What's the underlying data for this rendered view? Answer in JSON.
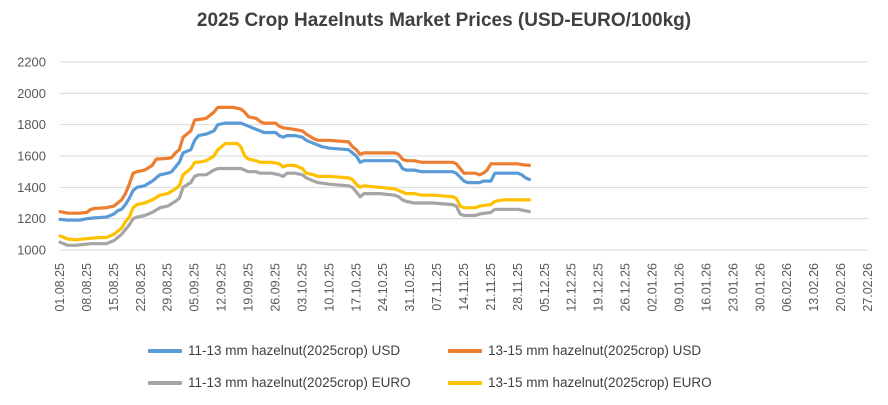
{
  "chart_data": {
    "type": "line",
    "title": "2025 Crop Hazelnuts Market Prices (USD-EURO/100kg)",
    "xlabel": "",
    "ylabel": "",
    "ylim": [
      1000,
      2200
    ],
    "yticks": [
      1000,
      1200,
      1400,
      1600,
      1800,
      2000,
      2200
    ],
    "grid": true,
    "legend_position": "bottom",
    "x_tick_labels": [
      "01.08.25",
      "08.08.25",
      "15.08.25",
      "22.08.25",
      "29.08.25",
      "05.09.25",
      "12.09.25",
      "19.09.25",
      "26.09.25",
      "03.10.25",
      "10.10.25",
      "17.10.25",
      "24.10.25",
      "31.10.25",
      "07.11.25",
      "14.11.25",
      "21.11.25",
      "28.11.25",
      "05.12.25",
      "12.12.25",
      "19.12.25",
      "26.12.25",
      "02.01.26",
      "09.01.26",
      "16.01.26",
      "23.01.26",
      "30.01.26",
      "06.02.26",
      "13.02.26",
      "20.02.26",
      "27.02.26"
    ],
    "series": [
      {
        "name": "11-13 mm hazelnut(2025crop) USD",
        "color": "#5B9BD5",
        "points": [
          [
            0,
            1195
          ],
          [
            2,
            1190
          ],
          [
            5,
            1190
          ],
          [
            7,
            1200
          ],
          [
            9,
            1205
          ],
          [
            12,
            1210
          ],
          [
            14,
            1230
          ],
          [
            15,
            1250
          ],
          [
            16,
            1260
          ],
          [
            17,
            1290
          ],
          [
            18,
            1330
          ],
          [
            19,
            1380
          ],
          [
            20,
            1400
          ],
          [
            22,
            1410
          ],
          [
            24,
            1440
          ],
          [
            26,
            1480
          ],
          [
            28,
            1490
          ],
          [
            29,
            1500
          ],
          [
            30,
            1530
          ],
          [
            31,
            1560
          ],
          [
            32,
            1620
          ],
          [
            34,
            1640
          ],
          [
            35,
            1700
          ],
          [
            36,
            1730
          ],
          [
            38,
            1740
          ],
          [
            40,
            1760
          ],
          [
            41,
            1800
          ],
          [
            43,
            1810
          ],
          [
            47,
            1810
          ],
          [
            49,
            1790
          ],
          [
            51,
            1770
          ],
          [
            52,
            1760
          ],
          [
            53,
            1750
          ],
          [
            56,
            1750
          ],
          [
            57,
            1730
          ],
          [
            58,
            1720
          ],
          [
            59,
            1730
          ],
          [
            61,
            1730
          ],
          [
            63,
            1720
          ],
          [
            64,
            1700
          ],
          [
            66,
            1680
          ],
          [
            67,
            1670
          ],
          [
            68,
            1660
          ],
          [
            70,
            1650
          ],
          [
            75,
            1640
          ],
          [
            76,
            1620
          ],
          [
            77,
            1600
          ],
          [
            78,
            1560
          ],
          [
            79,
            1570
          ],
          [
            83,
            1570
          ],
          [
            87,
            1570
          ],
          [
            88,
            1560
          ],
          [
            89,
            1520
          ],
          [
            90,
            1510
          ],
          [
            92,
            1510
          ],
          [
            94,
            1500
          ],
          [
            97,
            1500
          ],
          [
            102,
            1500
          ],
          [
            103,
            1490
          ],
          [
            105,
            1440
          ],
          [
            106,
            1430
          ],
          [
            109,
            1430
          ],
          [
            110,
            1440
          ],
          [
            112,
            1440
          ],
          [
            113,
            1490
          ],
          [
            115,
            1490
          ],
          [
            119,
            1490
          ],
          [
            120,
            1480
          ],
          [
            121,
            1460
          ],
          [
            122,
            1450
          ]
        ]
      },
      {
        "name": "13-15 mm hazelnut(2025crop) USD",
        "color": "#ED7D31",
        "points": [
          [
            0,
            1245
          ],
          [
            2,
            1235
          ],
          [
            5,
            1235
          ],
          [
            7,
            1240
          ],
          [
            8,
            1260
          ],
          [
            9,
            1265
          ],
          [
            12,
            1270
          ],
          [
            14,
            1280
          ],
          [
            15,
            1300
          ],
          [
            16,
            1320
          ],
          [
            17,
            1360
          ],
          [
            18,
            1420
          ],
          [
            19,
            1490
          ],
          [
            20,
            1500
          ],
          [
            22,
            1510
          ],
          [
            24,
            1540
          ],
          [
            25,
            1580
          ],
          [
            28,
            1585
          ],
          [
            29,
            1590
          ],
          [
            30,
            1620
          ],
          [
            31,
            1640
          ],
          [
            32,
            1720
          ],
          [
            34,
            1760
          ],
          [
            35,
            1830
          ],
          [
            38,
            1840
          ],
          [
            40,
            1880
          ],
          [
            41,
            1910
          ],
          [
            45,
            1910
          ],
          [
            47,
            1900
          ],
          [
            48,
            1880
          ],
          [
            49,
            1850
          ],
          [
            51,
            1840
          ],
          [
            52,
            1820
          ],
          [
            53,
            1810
          ],
          [
            56,
            1810
          ],
          [
            57,
            1790
          ],
          [
            58,
            1780
          ],
          [
            61,
            1770
          ],
          [
            63,
            1760
          ],
          [
            64,
            1740
          ],
          [
            66,
            1710
          ],
          [
            67,
            1700
          ],
          [
            70,
            1700
          ],
          [
            75,
            1690
          ],
          [
            76,
            1660
          ],
          [
            77,
            1640
          ],
          [
            78,
            1610
          ],
          [
            79,
            1620
          ],
          [
            83,
            1620
          ],
          [
            87,
            1620
          ],
          [
            88,
            1610
          ],
          [
            89,
            1580
          ],
          [
            90,
            1570
          ],
          [
            92,
            1570
          ],
          [
            94,
            1560
          ],
          [
            97,
            1560
          ],
          [
            102,
            1560
          ],
          [
            103,
            1550
          ],
          [
            105,
            1490
          ],
          [
            106,
            1490
          ],
          [
            108,
            1490
          ],
          [
            109,
            1480
          ],
          [
            110,
            1490
          ],
          [
            111,
            1510
          ],
          [
            112,
            1550
          ],
          [
            115,
            1550
          ],
          [
            119,
            1550
          ],
          [
            120,
            1545
          ],
          [
            122,
            1540
          ]
        ]
      },
      {
        "name": "11-13 mm hazelnut(2025crop) EURO",
        "color": "#A5A5A5",
        "points": [
          [
            0,
            1050
          ],
          [
            2,
            1030
          ],
          [
            4,
            1030
          ],
          [
            6,
            1035
          ],
          [
            8,
            1040
          ],
          [
            10,
            1040
          ],
          [
            12,
            1040
          ],
          [
            14,
            1060
          ],
          [
            15,
            1080
          ],
          [
            16,
            1100
          ],
          [
            17,
            1130
          ],
          [
            18,
            1160
          ],
          [
            19,
            1200
          ],
          [
            20,
            1210
          ],
          [
            22,
            1220
          ],
          [
            24,
            1240
          ],
          [
            26,
            1270
          ],
          [
            28,
            1280
          ],
          [
            30,
            1310
          ],
          [
            31,
            1330
          ],
          [
            32,
            1400
          ],
          [
            34,
            1430
          ],
          [
            35,
            1470
          ],
          [
            36,
            1480
          ],
          [
            38,
            1480
          ],
          [
            40,
            1510
          ],
          [
            41,
            1520
          ],
          [
            45,
            1520
          ],
          [
            47,
            1520
          ],
          [
            48,
            1510
          ],
          [
            49,
            1500
          ],
          [
            51,
            1500
          ],
          [
            52,
            1490
          ],
          [
            55,
            1490
          ],
          [
            57,
            1480
          ],
          [
            58,
            1470
          ],
          [
            59,
            1490
          ],
          [
            61,
            1490
          ],
          [
            63,
            1480
          ],
          [
            64,
            1460
          ],
          [
            66,
            1440
          ],
          [
            67,
            1430
          ],
          [
            70,
            1420
          ],
          [
            75,
            1410
          ],
          [
            76,
            1400
          ],
          [
            77,
            1370
          ],
          [
            78,
            1340
          ],
          [
            79,
            1360
          ],
          [
            83,
            1360
          ],
          [
            87,
            1350
          ],
          [
            88,
            1340
          ],
          [
            89,
            1320
          ],
          [
            90,
            1310
          ],
          [
            92,
            1300
          ],
          [
            94,
            1300
          ],
          [
            97,
            1300
          ],
          [
            102,
            1290
          ],
          [
            103,
            1280
          ],
          [
            104,
            1230
          ],
          [
            105,
            1220
          ],
          [
            108,
            1220
          ],
          [
            109,
            1230
          ],
          [
            112,
            1240
          ],
          [
            113,
            1260
          ],
          [
            115,
            1260
          ],
          [
            119,
            1260
          ],
          [
            120,
            1255
          ],
          [
            122,
            1245
          ]
        ]
      },
      {
        "name": "13-15 mm hazelnut(2025crop) EURO",
        "color": "#FFC000",
        "points": [
          [
            0,
            1090
          ],
          [
            2,
            1070
          ],
          [
            4,
            1065
          ],
          [
            6,
            1070
          ],
          [
            8,
            1075
          ],
          [
            10,
            1080
          ],
          [
            12,
            1080
          ],
          [
            14,
            1100
          ],
          [
            15,
            1120
          ],
          [
            16,
            1140
          ],
          [
            17,
            1180
          ],
          [
            18,
            1210
          ],
          [
            19,
            1270
          ],
          [
            20,
            1290
          ],
          [
            22,
            1300
          ],
          [
            24,
            1320
          ],
          [
            26,
            1350
          ],
          [
            28,
            1360
          ],
          [
            30,
            1390
          ],
          [
            31,
            1410
          ],
          [
            32,
            1480
          ],
          [
            34,
            1520
          ],
          [
            35,
            1560
          ],
          [
            36,
            1560
          ],
          [
            38,
            1570
          ],
          [
            40,
            1600
          ],
          [
            41,
            1640
          ],
          [
            42,
            1660
          ],
          [
            43,
            1680
          ],
          [
            46,
            1680
          ],
          [
            47,
            1660
          ],
          [
            48,
            1600
          ],
          [
            49,
            1580
          ],
          [
            51,
            1570
          ],
          [
            52,
            1560
          ],
          [
            55,
            1560
          ],
          [
            57,
            1550
          ],
          [
            58,
            1530
          ],
          [
            59,
            1540
          ],
          [
            61,
            1540
          ],
          [
            63,
            1520
          ],
          [
            64,
            1490
          ],
          [
            66,
            1480
          ],
          [
            67,
            1470
          ],
          [
            70,
            1470
          ],
          [
            75,
            1460
          ],
          [
            76,
            1450
          ],
          [
            77,
            1420
          ],
          [
            78,
            1400
          ],
          [
            79,
            1410
          ],
          [
            83,
            1400
          ],
          [
            87,
            1390
          ],
          [
            88,
            1380
          ],
          [
            89,
            1370
          ],
          [
            90,
            1360
          ],
          [
            92,
            1360
          ],
          [
            94,
            1350
          ],
          [
            97,
            1350
          ],
          [
            102,
            1340
          ],
          [
            103,
            1330
          ],
          [
            104,
            1280
          ],
          [
            105,
            1270
          ],
          [
            108,
            1270
          ],
          [
            109,
            1280
          ],
          [
            112,
            1290
          ],
          [
            113,
            1310
          ],
          [
            115,
            1320
          ],
          [
            119,
            1320
          ],
          [
            120,
            1320
          ],
          [
            122,
            1320
          ]
        ]
      }
    ]
  }
}
